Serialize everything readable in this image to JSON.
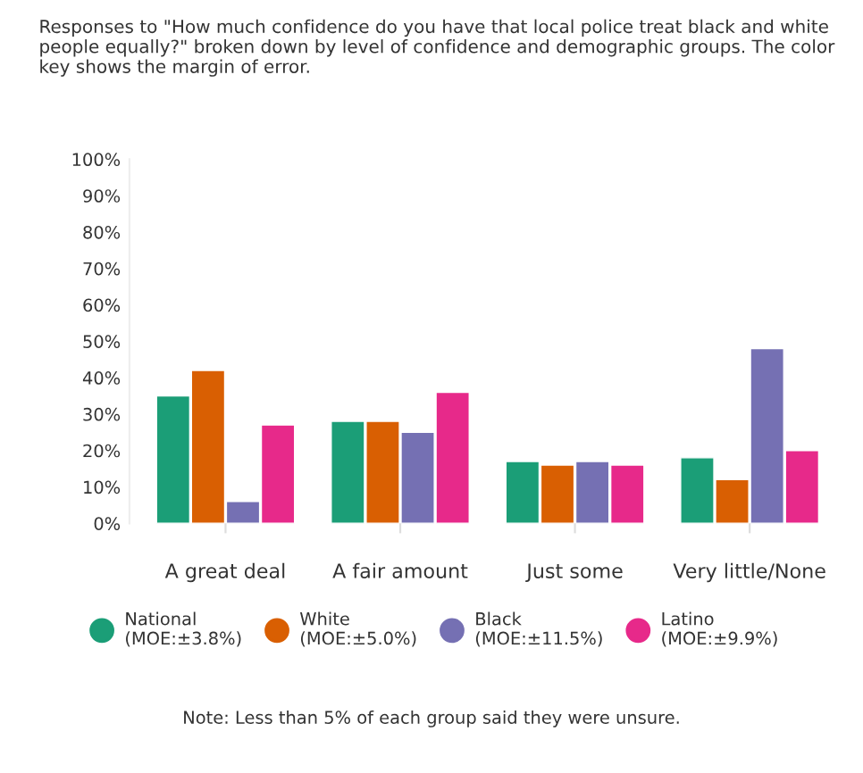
{
  "chart_data": {
    "type": "bar",
    "title": "Responses to \"How much confidence do you have that local police treat black and white people equally?\" broken down by level of confidence and demographic groups. The color key shows the margin of error.",
    "categories": [
      "A great deal",
      "A fair amount",
      "Just some",
      "Very little/None"
    ],
    "series": [
      {
        "name": "National\n(MOE:±3.8%)",
        "color": "#1b9e77",
        "values": [
          35,
          28,
          17,
          18
        ]
      },
      {
        "name": "White\n(MOE:±5.0%)",
        "color": "#d95f02",
        "values": [
          42,
          28,
          16,
          12
        ]
      },
      {
        "name": "Black\n(MOE:±11.5%)",
        "color": "#7570b3",
        "values": [
          6,
          25,
          17,
          48
        ]
      },
      {
        "name": "Latino\n(MOE:±9.9%)",
        "color": "#e7298a",
        "values": [
          27,
          36,
          16,
          20
        ]
      }
    ],
    "ylim": [
      0,
      100
    ],
    "yticks": [
      {
        "value": 0,
        "label": "0%"
      },
      {
        "value": 10,
        "label": "10%"
      },
      {
        "value": 20,
        "label": "20%"
      },
      {
        "value": 30,
        "label": "30%"
      },
      {
        "value": 40,
        "label": "40%"
      },
      {
        "value": 50,
        "label": "50%"
      },
      {
        "value": 60,
        "label": "60%"
      },
      {
        "value": 70,
        "label": "70%"
      },
      {
        "value": 80,
        "label": "80%"
      },
      {
        "value": 90,
        "label": "90%"
      },
      {
        "value": 100,
        "label": "100%"
      }
    ],
    "legend": "bottom",
    "grid": false,
    "annotations": [
      "Note: Less than 5% of each group said they were unsure."
    ]
  }
}
